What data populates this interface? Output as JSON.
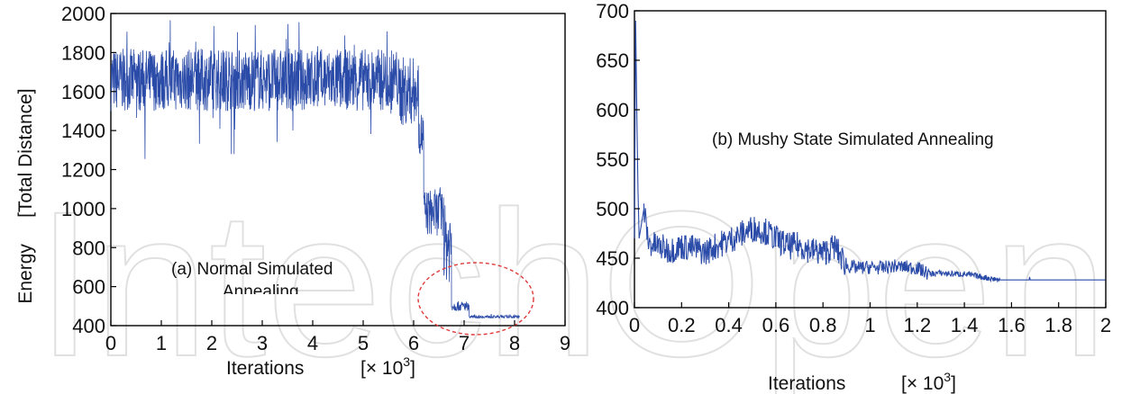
{
  "watermark": "IntechOpen",
  "chart_data": [
    {
      "type": "line",
      "annotation": "(a) Normal Simulated Annealing",
      "annotation_note": "second word of the annotation is clipped at the bottom",
      "ylabel": "Energy     [Total Distance]",
      "xlabel": "Iterations",
      "xunit": "[× 10",
      "xunit_exp": "3",
      "xunit_close": "]",
      "xlim": [
        0,
        9
      ],
      "ylim": [
        400,
        2000
      ],
      "xticks": [
        "0",
        "1",
        "2",
        "3",
        "4",
        "5",
        "6",
        "7",
        "8",
        "9"
      ],
      "yticks": [
        "400",
        "600",
        "800",
        "1000",
        "1200",
        "1400",
        "1600",
        "1800",
        "2000"
      ],
      "grid": false,
      "series_color": "#2b4ba8",
      "highlight": {
        "shape": "dashed ellipse",
        "color": "#e03a3a",
        "around_x": [
          6.5,
          8.1
        ],
        "around_y": [
          430,
          600
        ]
      },
      "segments": [
        {
          "x": [
            0,
            5.7
          ],
          "mean": 1660,
          "spread": 160,
          "min": 1250,
          "max": 1970
        },
        {
          "x": [
            5.7,
            6.1
          ],
          "mean": 1600,
          "spread": 180,
          "min": 1250,
          "max": 1950
        },
        {
          "x": [
            6.1,
            6.2
          ],
          "mean": 1380,
          "spread": 120,
          "min": 1200,
          "max": 1500
        },
        {
          "x": [
            6.2,
            6.6
          ],
          "mean": 980,
          "spread": 120,
          "min": 790,
          "max": 1160
        },
        {
          "x": [
            6.6,
            6.75
          ],
          "mean": 820,
          "spread": 200,
          "min": 500,
          "max": 1100
        },
        {
          "x": [
            6.75,
            7.1
          ],
          "mean": 500,
          "spread": 25,
          "min": 460,
          "max": 560
        },
        {
          "x": [
            7.1,
            8.1
          ],
          "mean": 445,
          "spread": 8,
          "min": 440,
          "max": 460
        }
      ]
    },
    {
      "type": "line",
      "annotation": "(b) Mushy State Simulated Annealing",
      "ylabel": "",
      "xlabel": "Iterations",
      "xunit": "[× 10",
      "xunit_exp": "3",
      "xunit_close": "]",
      "xlim": [
        0,
        2
      ],
      "ylim": [
        400,
        700
      ],
      "xticks": [
        "0",
        "0.2",
        "0.4",
        "0.6",
        "0.8",
        "1",
        "1.2",
        "1.4",
        "1.6",
        "1.8",
        "2"
      ],
      "yticks": [
        "400",
        "450",
        "500",
        "550",
        "600",
        "650",
        "700"
      ],
      "grid": false,
      "series_color": "#2b4ba8",
      "points": [
        [
          0,
          470
        ],
        [
          0.005,
          690
        ],
        [
          0.01,
          600
        ],
        [
          0.015,
          520
        ],
        [
          0.02,
          470
        ],
        [
          0.04,
          500
        ],
        [
          0.06,
          465
        ],
        [
          0.1,
          462
        ],
        [
          0.15,
          458
        ],
        [
          0.2,
          462
        ],
        [
          0.25,
          460
        ],
        [
          0.3,
          456
        ],
        [
          0.35,
          463
        ],
        [
          0.4,
          468
        ],
        [
          0.45,
          474
        ],
        [
          0.5,
          480
        ],
        [
          0.55,
          478
        ],
        [
          0.6,
          470
        ],
        [
          0.65,
          462
        ],
        [
          0.7,
          463
        ],
        [
          0.75,
          458
        ],
        [
          0.8,
          455
        ],
        [
          0.85,
          462
        ],
        [
          0.9,
          442
        ],
        [
          0.95,
          440
        ],
        [
          1.0,
          441
        ],
        [
          1.05,
          440
        ],
        [
          1.1,
          442
        ],
        [
          1.15,
          441
        ],
        [
          1.2,
          440
        ],
        [
          1.25,
          434
        ],
        [
          1.3,
          435
        ],
        [
          1.35,
          434
        ],
        [
          1.4,
          434
        ],
        [
          1.45,
          432
        ],
        [
          1.5,
          430
        ],
        [
          1.55,
          428
        ],
        [
          1.6,
          428
        ],
        [
          1.7,
          428
        ],
        [
          1.8,
          428
        ],
        [
          1.9,
          428
        ],
        [
          2.0,
          428
        ]
      ],
      "noise": [
        {
          "x": [
            0.02,
            0.9
          ],
          "spread": 14
        },
        {
          "x": [
            0.9,
            1.25
          ],
          "spread": 7
        },
        {
          "x": [
            1.25,
            1.55
          ],
          "spread": 3
        },
        {
          "x": [
            1.55,
            2.0
          ],
          "spread": 0
        }
      ]
    }
  ]
}
